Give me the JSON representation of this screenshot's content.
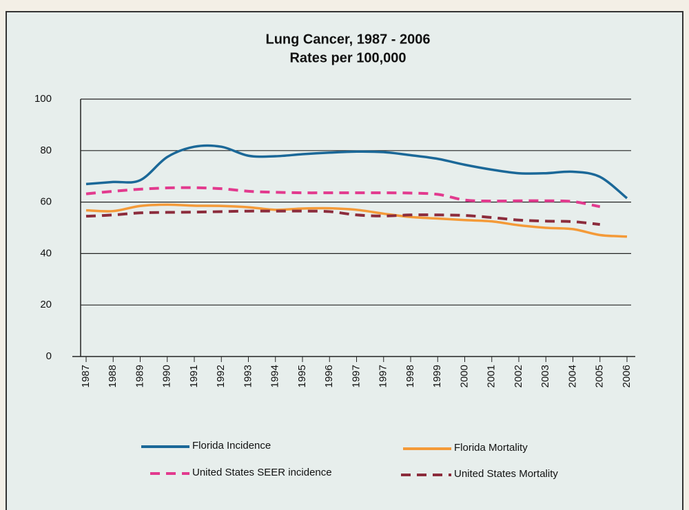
{
  "chart_data": {
    "type": "line",
    "title": "Lung Cancer, 1987 - 2006",
    "subtitle": "Rates per 100,000",
    "categories": [
      "1987",
      "1988",
      "1989",
      "1990",
      "1991",
      "1992",
      "1993",
      "1994",
      "1995",
      "1996",
      "1997",
      "1997",
      "1998",
      "1999",
      "2000",
      "2001",
      "2002",
      "2003",
      "2004",
      "2005",
      "2006"
    ],
    "ylim": [
      0,
      100
    ],
    "yticks": [
      0,
      20,
      40,
      60,
      80,
      100
    ],
    "grid": true,
    "series": [
      {
        "name": "Florida Incidence",
        "color": "#1b6898",
        "dashed": false,
        "values": [
          67,
          67.8,
          68.5,
          77.5,
          81.5,
          81.5,
          78,
          77.8,
          78.6,
          79.2,
          79.6,
          79.4,
          78.2,
          76.8,
          74.5,
          72.6,
          71.2,
          71.2,
          71.8,
          69.8,
          61.5
        ]
      },
      {
        "name": "Florida Mortality",
        "color": "#f49a38",
        "dashed": false,
        "values": [
          56.8,
          56.5,
          58.5,
          59,
          58.6,
          58.5,
          58,
          57,
          57.5,
          57.6,
          57,
          55.5,
          54.2,
          53.6,
          53,
          52.5,
          51,
          50,
          49.5,
          47.2,
          46.6
        ]
      },
      {
        "name": "United States SEER incidence",
        "color": "#e23a8e",
        "dashed": true,
        "values": [
          63.2,
          64.2,
          65,
          65.5,
          65.6,
          65.2,
          64.2,
          63.8,
          63.6,
          63.6,
          63.6,
          63.6,
          63.5,
          63,
          60.8,
          60.4,
          60.5,
          60.5,
          60.2,
          58.2,
          null
        ]
      },
      {
        "name": "United States Mortality",
        "color": "#8c2c3c",
        "dashed": true,
        "values": [
          54.5,
          55,
          55.8,
          56,
          56.1,
          56.3,
          56.5,
          56.5,
          56.5,
          56.3,
          55,
          54.6,
          55,
          55,
          54.8,
          54,
          53,
          52.6,
          52.4,
          51.3,
          null
        ]
      }
    ]
  }
}
